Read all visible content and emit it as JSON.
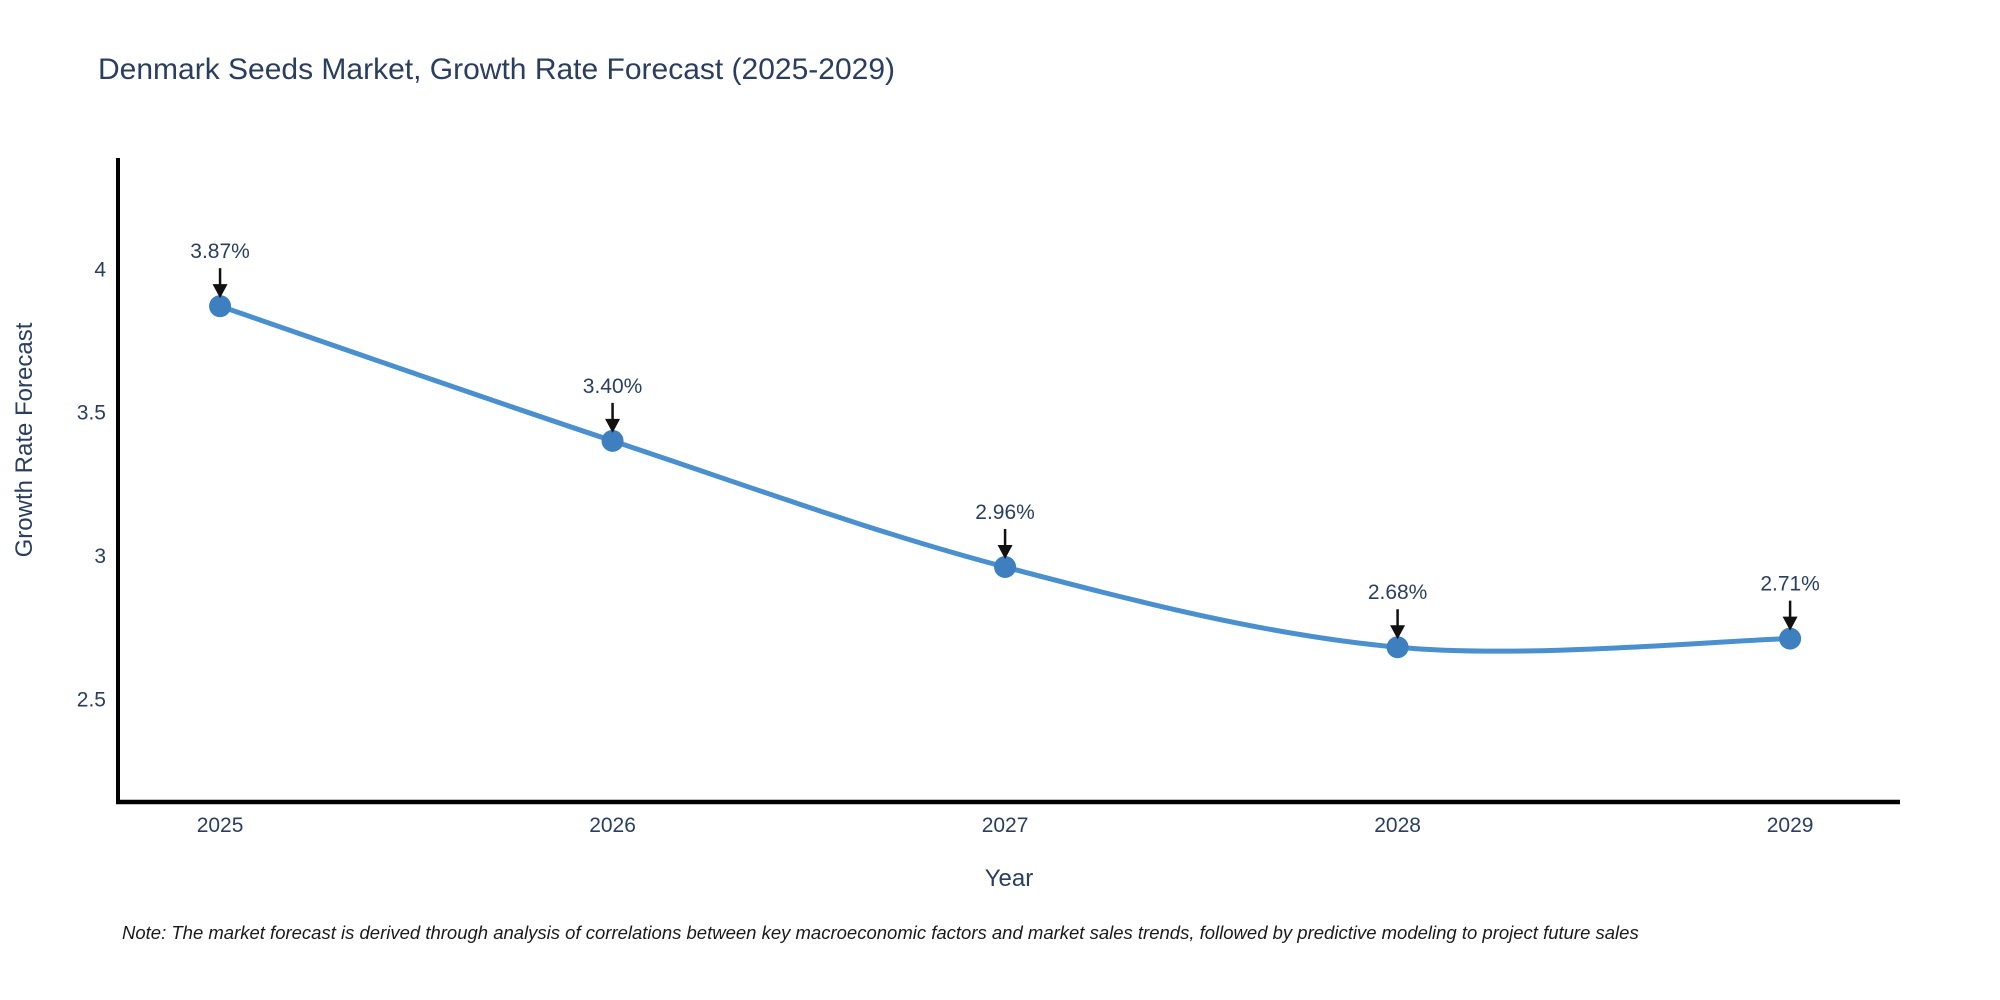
{
  "chart_data": {
    "type": "line",
    "title": "Denmark Seeds Market, Growth Rate Forecast (2025-2029)",
    "xlabel": "Year",
    "ylabel": "Growth Rate Forecast",
    "categories": [
      "2025",
      "2026",
      "2027",
      "2028",
      "2029"
    ],
    "x": [
      2025,
      2026,
      2027,
      2028,
      2029
    ],
    "series": [
      {
        "name": "Growth Rate Forecast",
        "values": [
          3.87,
          3.4,
          2.96,
          2.68,
          2.71
        ],
        "point_labels": [
          "3.87%",
          "3.40%",
          "2.96%",
          "2.68%",
          "2.71%"
        ]
      }
    ],
    "yticks": [
      2.5,
      3,
      3.5,
      4
    ],
    "ytick_labels": [
      "2.5",
      "3",
      "3.5",
      "4"
    ],
    "ylim": [
      2.14,
      4.38
    ],
    "xlim": [
      2024.74,
      2029.28
    ],
    "grid": false,
    "legend_position": "none",
    "line_shape": "spline",
    "marker_style": "filled-circle",
    "annotation_arrows": "black-down-arrows",
    "note": "Note: The market forecast is derived through analysis of correlations between key macroeconomic factors and market sales trends, followed by predictive modeling to project future sales",
    "colors": {
      "line": "#4a90cf",
      "marker": "#3e7fbf",
      "axis": "#000000",
      "text": "#2a3f5f",
      "arrow": "#111111",
      "note_text": "#1a1a1a",
      "background": "#ffffff"
    }
  }
}
